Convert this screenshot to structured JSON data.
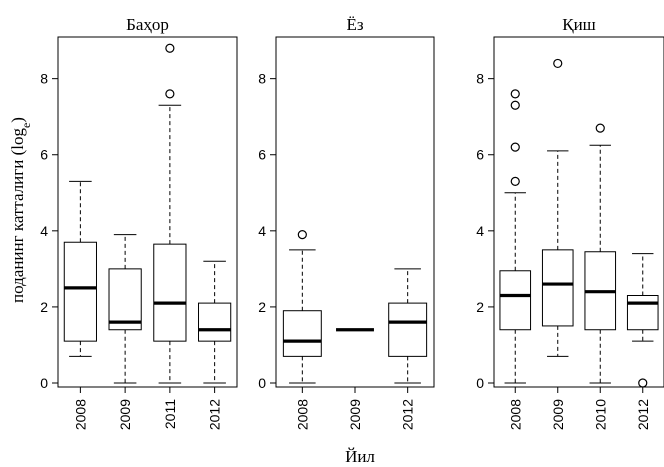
{
  "chart_data": {
    "type": "boxplot",
    "ylabel": "поданинг катталиги (log",
    "ylabel_subscript": "e",
    "ylabel_close": ")",
    "xlabel": "Йил",
    "ylim": [
      0,
      9.2
    ],
    "yticks": [
      0,
      2,
      4,
      6,
      8
    ],
    "grid": false,
    "panels": [
      {
        "title": "Баҳор",
        "categories": [
          "2008",
          "2009",
          "2011",
          "2012"
        ],
        "boxes": [
          {
            "min": 0.7,
            "q1": 1.1,
            "median": 2.5,
            "q3": 3.7,
            "max": 5.3,
            "outliers": []
          },
          {
            "min": 0.0,
            "q1": 1.4,
            "median": 1.6,
            "q3": 3.0,
            "max": 3.9,
            "outliers": []
          },
          {
            "min": 0.0,
            "q1": 1.1,
            "median": 2.1,
            "q3": 3.65,
            "max": 7.3,
            "outliers": [
              7.6,
              8.8
            ]
          },
          {
            "min": 0.0,
            "q1": 1.1,
            "median": 1.4,
            "q3": 2.1,
            "max": 3.2,
            "outliers": []
          }
        ]
      },
      {
        "title": "Ёз",
        "categories": [
          "2008",
          "2009",
          "2012"
        ],
        "boxes": [
          {
            "min": 0.0,
            "q1": 0.7,
            "median": 1.1,
            "q3": 1.9,
            "max": 3.5,
            "outliers": [
              3.9
            ]
          },
          {
            "min": 1.4,
            "q1": 1.4,
            "median": 1.4,
            "q3": 1.4,
            "max": 1.4,
            "outliers": []
          },
          {
            "min": 0.0,
            "q1": 0.7,
            "median": 1.6,
            "q3": 2.1,
            "max": 3.0,
            "outliers": []
          }
        ]
      },
      {
        "title": "Қиш",
        "categories": [
          "2008",
          "2009",
          "2010",
          "2012"
        ],
        "boxes": [
          {
            "min": 0.0,
            "q1": 1.4,
            "median": 2.3,
            "q3": 2.95,
            "max": 5.0,
            "outliers": [
              5.3,
              6.2,
              7.3,
              7.6
            ]
          },
          {
            "min": 0.7,
            "q1": 1.5,
            "median": 2.6,
            "q3": 3.5,
            "max": 6.1,
            "outliers": [
              8.4
            ]
          },
          {
            "min": 0.0,
            "q1": 1.4,
            "median": 2.4,
            "q3": 3.45,
            "max": 6.25,
            "outliers": [
              6.7
            ]
          },
          {
            "min": 1.1,
            "q1": 1.4,
            "median": 2.1,
            "q3": 2.3,
            "max": 3.4,
            "outliers": [
              0.0
            ]
          }
        ]
      }
    ]
  }
}
